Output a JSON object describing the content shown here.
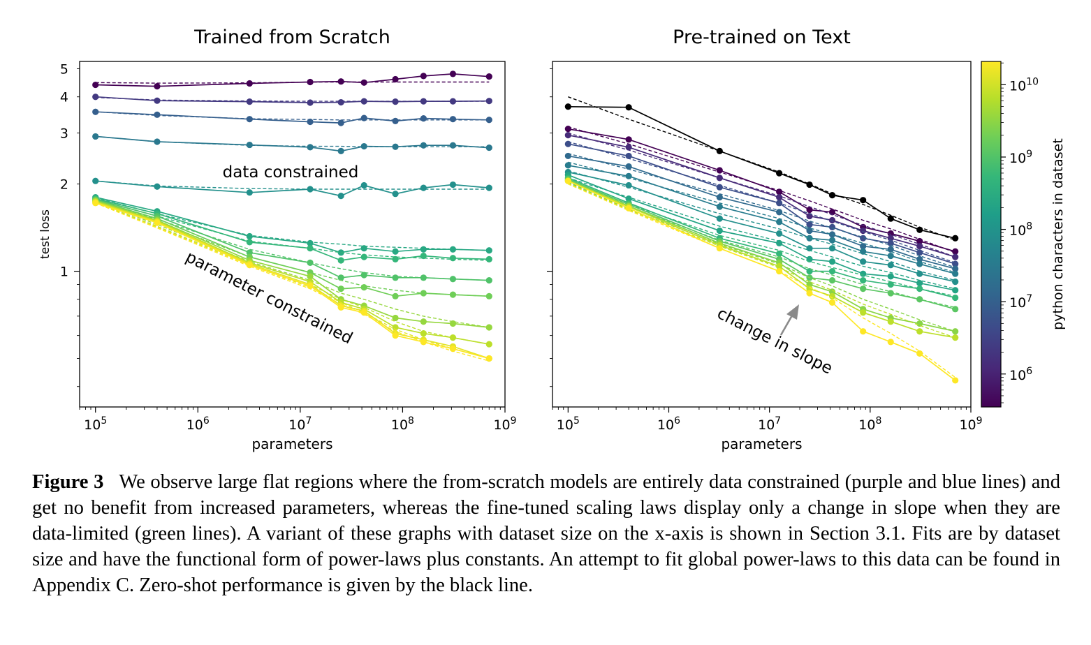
{
  "chart_data": [
    {
      "type": "line",
      "title": "Trained from Scratch",
      "xlabel": "parameters",
      "ylabel": "test loss",
      "xscale": "log",
      "yscale": "log",
      "xlim": [
        70000,
        1000000000
      ],
      "ylim": [
        0.34,
        5.3
      ],
      "xticks": [
        {
          "v": 100000,
          "b": "10",
          "e": "5"
        },
        {
          "v": 1000000,
          "b": "10",
          "e": "6"
        },
        {
          "v": 10000000,
          "b": "10",
          "e": "7"
        },
        {
          "v": 100000000,
          "b": "10",
          "e": "8"
        },
        {
          "v": 1000000000,
          "b": "10",
          "e": "9"
        }
      ],
      "yticks": [
        {
          "v": 1,
          "label": "1"
        },
        {
          "v": 2,
          "label": "2"
        },
        {
          "v": 3,
          "label": "3"
        },
        {
          "v": 4,
          "label": "4"
        },
        {
          "v": 5,
          "label": "5"
        }
      ],
      "x": [
        100000,
        400000,
        3200000,
        12500000,
        25000000,
        42000000,
        85000000,
        160000000,
        310000000,
        700000000
      ],
      "series": [
        {
          "c": 0.0,
          "values": [
            4.4,
            4.35,
            4.45,
            4.5,
            4.52,
            4.48,
            4.6,
            4.72,
            4.8,
            4.7
          ],
          "fit": [
            4.48,
            4.46,
            4.47,
            4.5,
            4.5,
            4.5,
            4.5,
            4.5,
            4.5,
            4.5
          ]
        },
        {
          "c": 0.17,
          "values": [
            4.0,
            3.88,
            3.85,
            3.82,
            3.83,
            3.86,
            3.85,
            3.86,
            3.86,
            3.87
          ],
          "fit": [
            3.98,
            3.9,
            3.87,
            3.86,
            3.86,
            3.86,
            3.86,
            3.86,
            3.86,
            3.86
          ]
        },
        {
          "c": 0.3,
          "values": [
            3.55,
            3.47,
            3.35,
            3.28,
            3.25,
            3.38,
            3.3,
            3.37,
            3.35,
            3.33
          ],
          "fit": [
            3.55,
            3.45,
            3.36,
            3.34,
            3.33,
            3.33,
            3.33,
            3.33,
            3.33,
            3.33
          ]
        },
        {
          "c": 0.4,
          "values": [
            2.92,
            2.8,
            2.73,
            2.68,
            2.6,
            2.7,
            2.69,
            2.72,
            2.72,
            2.67
          ],
          "fit": [
            2.92,
            2.8,
            2.72,
            2.7,
            2.7,
            2.69,
            2.69,
            2.69,
            2.69,
            2.69
          ]
        },
        {
          "c": 0.5,
          "values": [
            2.05,
            1.96,
            1.87,
            1.92,
            1.82,
            1.98,
            1.85,
            1.94,
            1.99,
            1.94
          ],
          "fit": [
            2.05,
            1.97,
            1.93,
            1.92,
            1.92,
            1.92,
            1.92,
            1.92,
            1.92,
            1.92
          ]
        },
        {
          "c": 0.6,
          "values": [
            1.8,
            1.61,
            1.32,
            1.25,
            1.16,
            1.2,
            1.17,
            1.19,
            1.19,
            1.18
          ],
          "fit": [
            1.79,
            1.58,
            1.33,
            1.26,
            1.24,
            1.22,
            1.21,
            1.2,
            1.19,
            1.18
          ]
        },
        {
          "c": 0.66,
          "values": [
            1.78,
            1.58,
            1.26,
            1.2,
            1.09,
            1.12,
            1.1,
            1.13,
            1.11,
            1.1
          ],
          "fit": [
            1.77,
            1.55,
            1.27,
            1.2,
            1.16,
            1.14,
            1.12,
            1.11,
            1.1,
            1.09
          ]
        },
        {
          "c": 0.72,
          "values": [
            1.77,
            1.55,
            1.16,
            1.07,
            0.95,
            0.97,
            0.95,
            0.95,
            0.94,
            0.93
          ],
          "fit": [
            1.76,
            1.51,
            1.19,
            1.07,
            1.02,
            0.99,
            0.96,
            0.95,
            0.94,
            0.93
          ]
        },
        {
          "c": 0.78,
          "values": [
            1.76,
            1.52,
            1.12,
            0.99,
            0.87,
            0.88,
            0.82,
            0.84,
            0.83,
            0.82
          ],
          "fit": [
            1.75,
            1.48,
            1.12,
            0.99,
            0.93,
            0.89,
            0.86,
            0.84,
            0.83,
            0.82
          ]
        },
        {
          "c": 0.84,
          "values": [
            1.75,
            1.5,
            1.09,
            0.96,
            0.8,
            0.76,
            0.69,
            0.67,
            0.66,
            0.64
          ],
          "fit": [
            1.74,
            1.45,
            1.08,
            0.93,
            0.84,
            0.8,
            0.74,
            0.7,
            0.67,
            0.64
          ]
        },
        {
          "c": 0.9,
          "values": [
            1.74,
            1.49,
            1.07,
            0.92,
            0.78,
            0.74,
            0.64,
            0.61,
            0.59,
            0.56
          ],
          "fit": [
            1.73,
            1.43,
            1.06,
            0.9,
            0.8,
            0.75,
            0.67,
            0.62,
            0.59,
            0.56
          ]
        },
        {
          "c": 0.96,
          "values": [
            1.73,
            1.48,
            1.06,
            0.9,
            0.76,
            0.73,
            0.61,
            0.58,
            0.55,
            0.5
          ],
          "fit": [
            1.72,
            1.42,
            1.05,
            0.88,
            0.78,
            0.72,
            0.63,
            0.58,
            0.54,
            0.5
          ]
        },
        {
          "c": 1.0,
          "values": [
            1.72,
            1.47,
            1.05,
            0.89,
            0.75,
            0.72,
            0.6,
            0.57,
            0.54,
            0.5
          ],
          "fit": [
            1.72,
            1.41,
            1.04,
            0.87,
            0.77,
            0.71,
            0.62,
            0.57,
            0.53,
            0.49
          ]
        }
      ],
      "annotations": [
        {
          "text": "data constrained"
        },
        {
          "text": "parameter constrained"
        }
      ]
    },
    {
      "type": "line",
      "title": "Pre-trained on Text",
      "xlabel": "parameters",
      "xscale": "log",
      "yscale": "log",
      "xlim": [
        70000,
        1000000000
      ],
      "ylim": [
        0.34,
        5.3
      ],
      "xticks": [
        {
          "v": 100000,
          "b": "10",
          "e": "5"
        },
        {
          "v": 1000000,
          "b": "10",
          "e": "6"
        },
        {
          "v": 10000000,
          "b": "10",
          "e": "7"
        },
        {
          "v": 100000000,
          "b": "10",
          "e": "8"
        },
        {
          "v": 1000000000,
          "b": "10",
          "e": "9"
        }
      ],
      "x": [
        100000,
        400000,
        3200000,
        12500000,
        25000000,
        42000000,
        85000000,
        160000000,
        310000000,
        700000000
      ],
      "zero_shot": {
        "color": "#000000",
        "values": [
          3.7,
          3.68,
          2.6,
          2.18,
          1.99,
          1.83,
          1.76,
          1.52,
          1.39,
          1.3
        ],
        "fit": [
          4.0,
          3.35,
          2.6,
          2.2,
          2.0,
          1.85,
          1.7,
          1.56,
          1.42,
          1.28
        ]
      },
      "series": [
        {
          "c": 0.0,
          "values": [
            3.1,
            2.85,
            2.23,
            1.88,
            1.63,
            1.6,
            1.42,
            1.35,
            1.27,
            1.17
          ],
          "fit": [
            3.15,
            2.75,
            2.2,
            1.9,
            1.75,
            1.64,
            1.5,
            1.4,
            1.29,
            1.16
          ]
        },
        {
          "c": 0.12,
          "values": [
            2.95,
            2.68,
            2.1,
            1.8,
            1.55,
            1.5,
            1.38,
            1.3,
            1.22,
            1.12
          ],
          "fit": [
            3.0,
            2.62,
            2.1,
            1.82,
            1.67,
            1.57,
            1.44,
            1.34,
            1.24,
            1.12
          ]
        },
        {
          "c": 0.24,
          "values": [
            2.75,
            2.5,
            1.95,
            1.72,
            1.45,
            1.42,
            1.3,
            1.25,
            1.16,
            1.06
          ],
          "fit": [
            2.8,
            2.45,
            1.98,
            1.72,
            1.58,
            1.49,
            1.37,
            1.28,
            1.18,
            1.07
          ]
        },
        {
          "c": 0.34,
          "values": [
            2.5,
            2.3,
            1.8,
            1.6,
            1.38,
            1.34,
            1.22,
            1.19,
            1.1,
            1.02
          ],
          "fit": [
            2.55,
            2.25,
            1.85,
            1.62,
            1.49,
            1.41,
            1.31,
            1.23,
            1.13,
            1.03
          ]
        },
        {
          "c": 0.42,
          "values": [
            2.32,
            2.13,
            1.67,
            1.48,
            1.3,
            1.28,
            1.17,
            1.13,
            1.06,
            0.98
          ],
          "fit": [
            2.38,
            2.1,
            1.72,
            1.52,
            1.41,
            1.34,
            1.25,
            1.17,
            1.08,
            0.99
          ]
        },
        {
          "c": 0.5,
          "values": [
            2.2,
            1.98,
            1.52,
            1.35,
            1.2,
            1.2,
            1.08,
            1.05,
            0.98,
            0.92
          ],
          "fit": [
            2.22,
            1.95,
            1.58,
            1.4,
            1.3,
            1.24,
            1.15,
            1.08,
            1.0,
            0.93
          ]
        },
        {
          "c": 0.58,
          "values": [
            2.15,
            1.78,
            1.38,
            1.25,
            1.1,
            1.08,
            0.98,
            0.96,
            0.91,
            0.86
          ],
          "fit": [
            2.1,
            1.8,
            1.43,
            1.27,
            1.18,
            1.12,
            1.04,
            0.99,
            0.93,
            0.87
          ]
        },
        {
          "c": 0.66,
          "values": [
            2.1,
            1.72,
            1.3,
            1.15,
            1.0,
            1.0,
            0.93,
            0.9,
            0.87,
            0.81
          ],
          "fit": [
            2.05,
            1.7,
            1.33,
            1.18,
            1.08,
            1.03,
            0.97,
            0.92,
            0.87,
            0.82
          ]
        },
        {
          "c": 0.74,
          "values": [
            2.08,
            1.7,
            1.27,
            1.1,
            0.95,
            0.93,
            0.87,
            0.84,
            0.8,
            0.74
          ],
          "fit": [
            2.03,
            1.67,
            1.28,
            1.12,
            1.02,
            0.97,
            0.9,
            0.85,
            0.8,
            0.75
          ]
        },
        {
          "c": 0.82,
          "values": [
            2.06,
            1.68,
            1.25,
            1.07,
            0.9,
            0.85,
            0.74,
            0.69,
            0.66,
            0.62
          ],
          "fit": [
            2.02,
            1.64,
            1.24,
            1.06,
            0.95,
            0.89,
            0.8,
            0.74,
            0.68,
            0.62
          ]
        },
        {
          "c": 0.9,
          "values": [
            2.05,
            1.67,
            1.23,
            1.04,
            0.87,
            0.82,
            0.72,
            0.67,
            0.62,
            0.59
          ],
          "fit": [
            2.01,
            1.63,
            1.22,
            1.03,
            0.92,
            0.86,
            0.77,
            0.71,
            0.65,
            0.59
          ]
        },
        {
          "c": 1.0,
          "values": [
            2.05,
            1.65,
            1.2,
            1.0,
            0.84,
            0.78,
            0.62,
            0.57,
            0.52,
            0.42
          ],
          "fit": [
            2.0,
            1.62,
            1.2,
            1.0,
            0.88,
            0.81,
            0.69,
            0.61,
            0.53,
            0.43
          ]
        }
      ],
      "annotations": [
        {
          "text": "change in slope"
        }
      ]
    }
  ],
  "colorbar": {
    "label": "python characters in dataset",
    "scale": "log",
    "range": [
      350000,
      21000000000
    ],
    "colormap": [
      "#440154",
      "#482878",
      "#3e4989",
      "#31688e",
      "#26828e",
      "#1f9e89",
      "#35b779",
      "#6ece58",
      "#b5de2b",
      "#fde725"
    ],
    "ticks": [
      {
        "v": 1000000,
        "b": "10",
        "e": "6"
      },
      {
        "v": 10000000,
        "b": "10",
        "e": "7"
      },
      {
        "v": 100000000,
        "b": "10",
        "e": "8"
      },
      {
        "v": 1000000000,
        "b": "10",
        "e": "9"
      },
      {
        "v": 10000000000,
        "b": "10",
        "e": "10"
      }
    ]
  },
  "caption": {
    "label": "Figure 3",
    "text": "We observe large flat regions where the from-scratch models are entirely data constrained (purple and blue lines) and get no benefit from increased parameters, whereas the fine-tuned scaling laws display only a change in slope when they are data-limited (green lines). A variant of these graphs with dataset size on the x-axis is shown in Section 3.1. Fits are by dataset size and have the functional form of power-laws plus constants. An attempt to fit global power-laws to this data can be found in Appendix C. Zero-shot performance is given by the black line."
  }
}
